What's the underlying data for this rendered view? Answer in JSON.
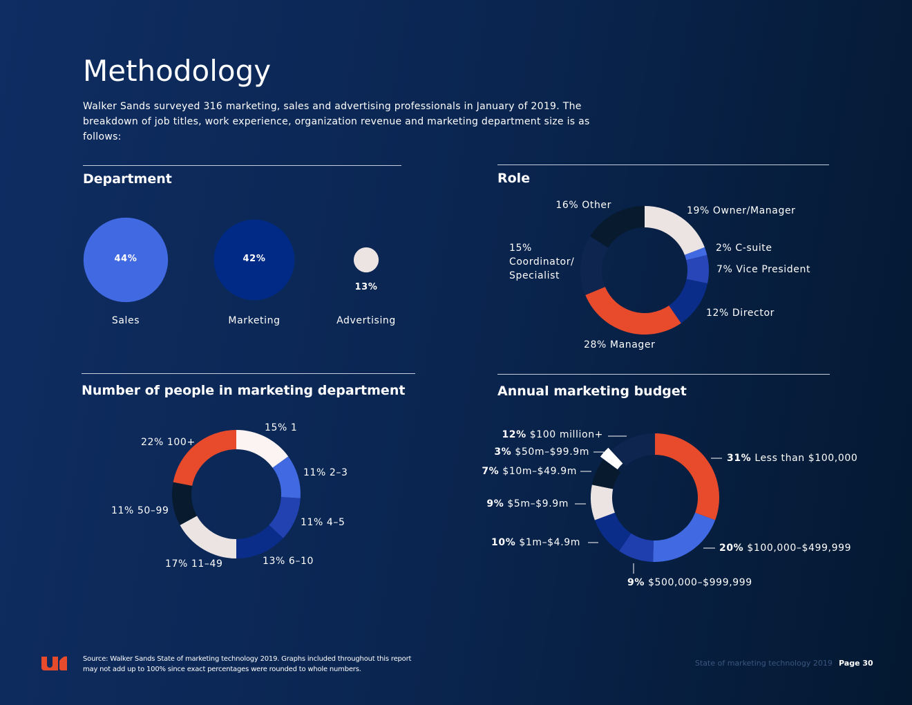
{
  "header": {
    "title": "Methodology",
    "description": "Walker Sands surveyed 316 marketing, sales and advertising professionals in January of 2019. The breakdown of job titles, work experience, organization revenue and marketing department size is as follows:"
  },
  "chart_data": [
    {
      "type": "bubble",
      "title": "Department",
      "categories": [
        "Sales",
        "Marketing",
        "Advertising"
      ],
      "values": [
        44,
        42,
        13
      ],
      "value_labels": [
        "44%",
        "42%",
        "13%"
      ],
      "colors": [
        "#4169e1",
        "#002a85",
        "#ece3e3"
      ]
    },
    {
      "type": "donut",
      "title": "Role",
      "categories": [
        "Owner/Manager",
        "C-suite",
        "Vice President",
        "Director",
        "Manager",
        "Coordinator/ Specialist",
        "Other"
      ],
      "values": [
        19,
        2,
        7,
        12,
        28,
        15,
        16
      ],
      "value_labels": [
        "19%",
        "2%",
        "7%",
        "12%",
        "28%",
        "15%",
        "16%"
      ],
      "colors": [
        "#ece3e3",
        "#4169e1",
        "#2846b8",
        "#0a2d8a",
        "#e84a2c",
        "#0e2550",
        "#071a2e"
      ]
    },
    {
      "type": "donut",
      "title": "Number of people in marketing department",
      "categories": [
        "1",
        "2–3",
        "4–5",
        "6–10",
        "11–49",
        "50–99",
        "100+"
      ],
      "values": [
        15,
        11,
        11,
        13,
        17,
        11,
        22
      ],
      "value_labels": [
        "15%",
        "11%",
        "11%",
        "13%",
        "17%",
        "11%",
        "22%"
      ],
      "colors": [
        "#fcf3f3",
        "#4169e1",
        "#2142b0",
        "#0a2d8a",
        "#ece3e3",
        "#071a2e",
        "#e84a2c"
      ]
    },
    {
      "type": "donut",
      "title": "Annual marketing budget",
      "categories": [
        "Less than $100,000",
        "$100,000–$499,999",
        "$500,000–$999,999",
        "$1m–$4.9m",
        "$5m–$9.9m",
        "$10m–$49.9m",
        "$50m–$99.9m",
        "$100 million+"
      ],
      "values": [
        31,
        20,
        9,
        10,
        9,
        7,
        3,
        12
      ],
      "value_labels": [
        "31%",
        "20%",
        "9%",
        "10%",
        "9%",
        "7%",
        "3%",
        "12%"
      ],
      "colors": [
        "#e84a2c",
        "#4169e1",
        "#1f3fae",
        "#0a2d8a",
        "#ece3e3",
        "#071a2e",
        "#ffffff",
        "#0e2550"
      ]
    }
  ],
  "footer": {
    "source": "Source: Walker Sands State of marketing technology 2019. Graphs included throughout this report may not add up to 100% since exact percentages were rounded to whole numbers.",
    "report": "State of marketing technology 2019",
    "page": "Page 30"
  }
}
